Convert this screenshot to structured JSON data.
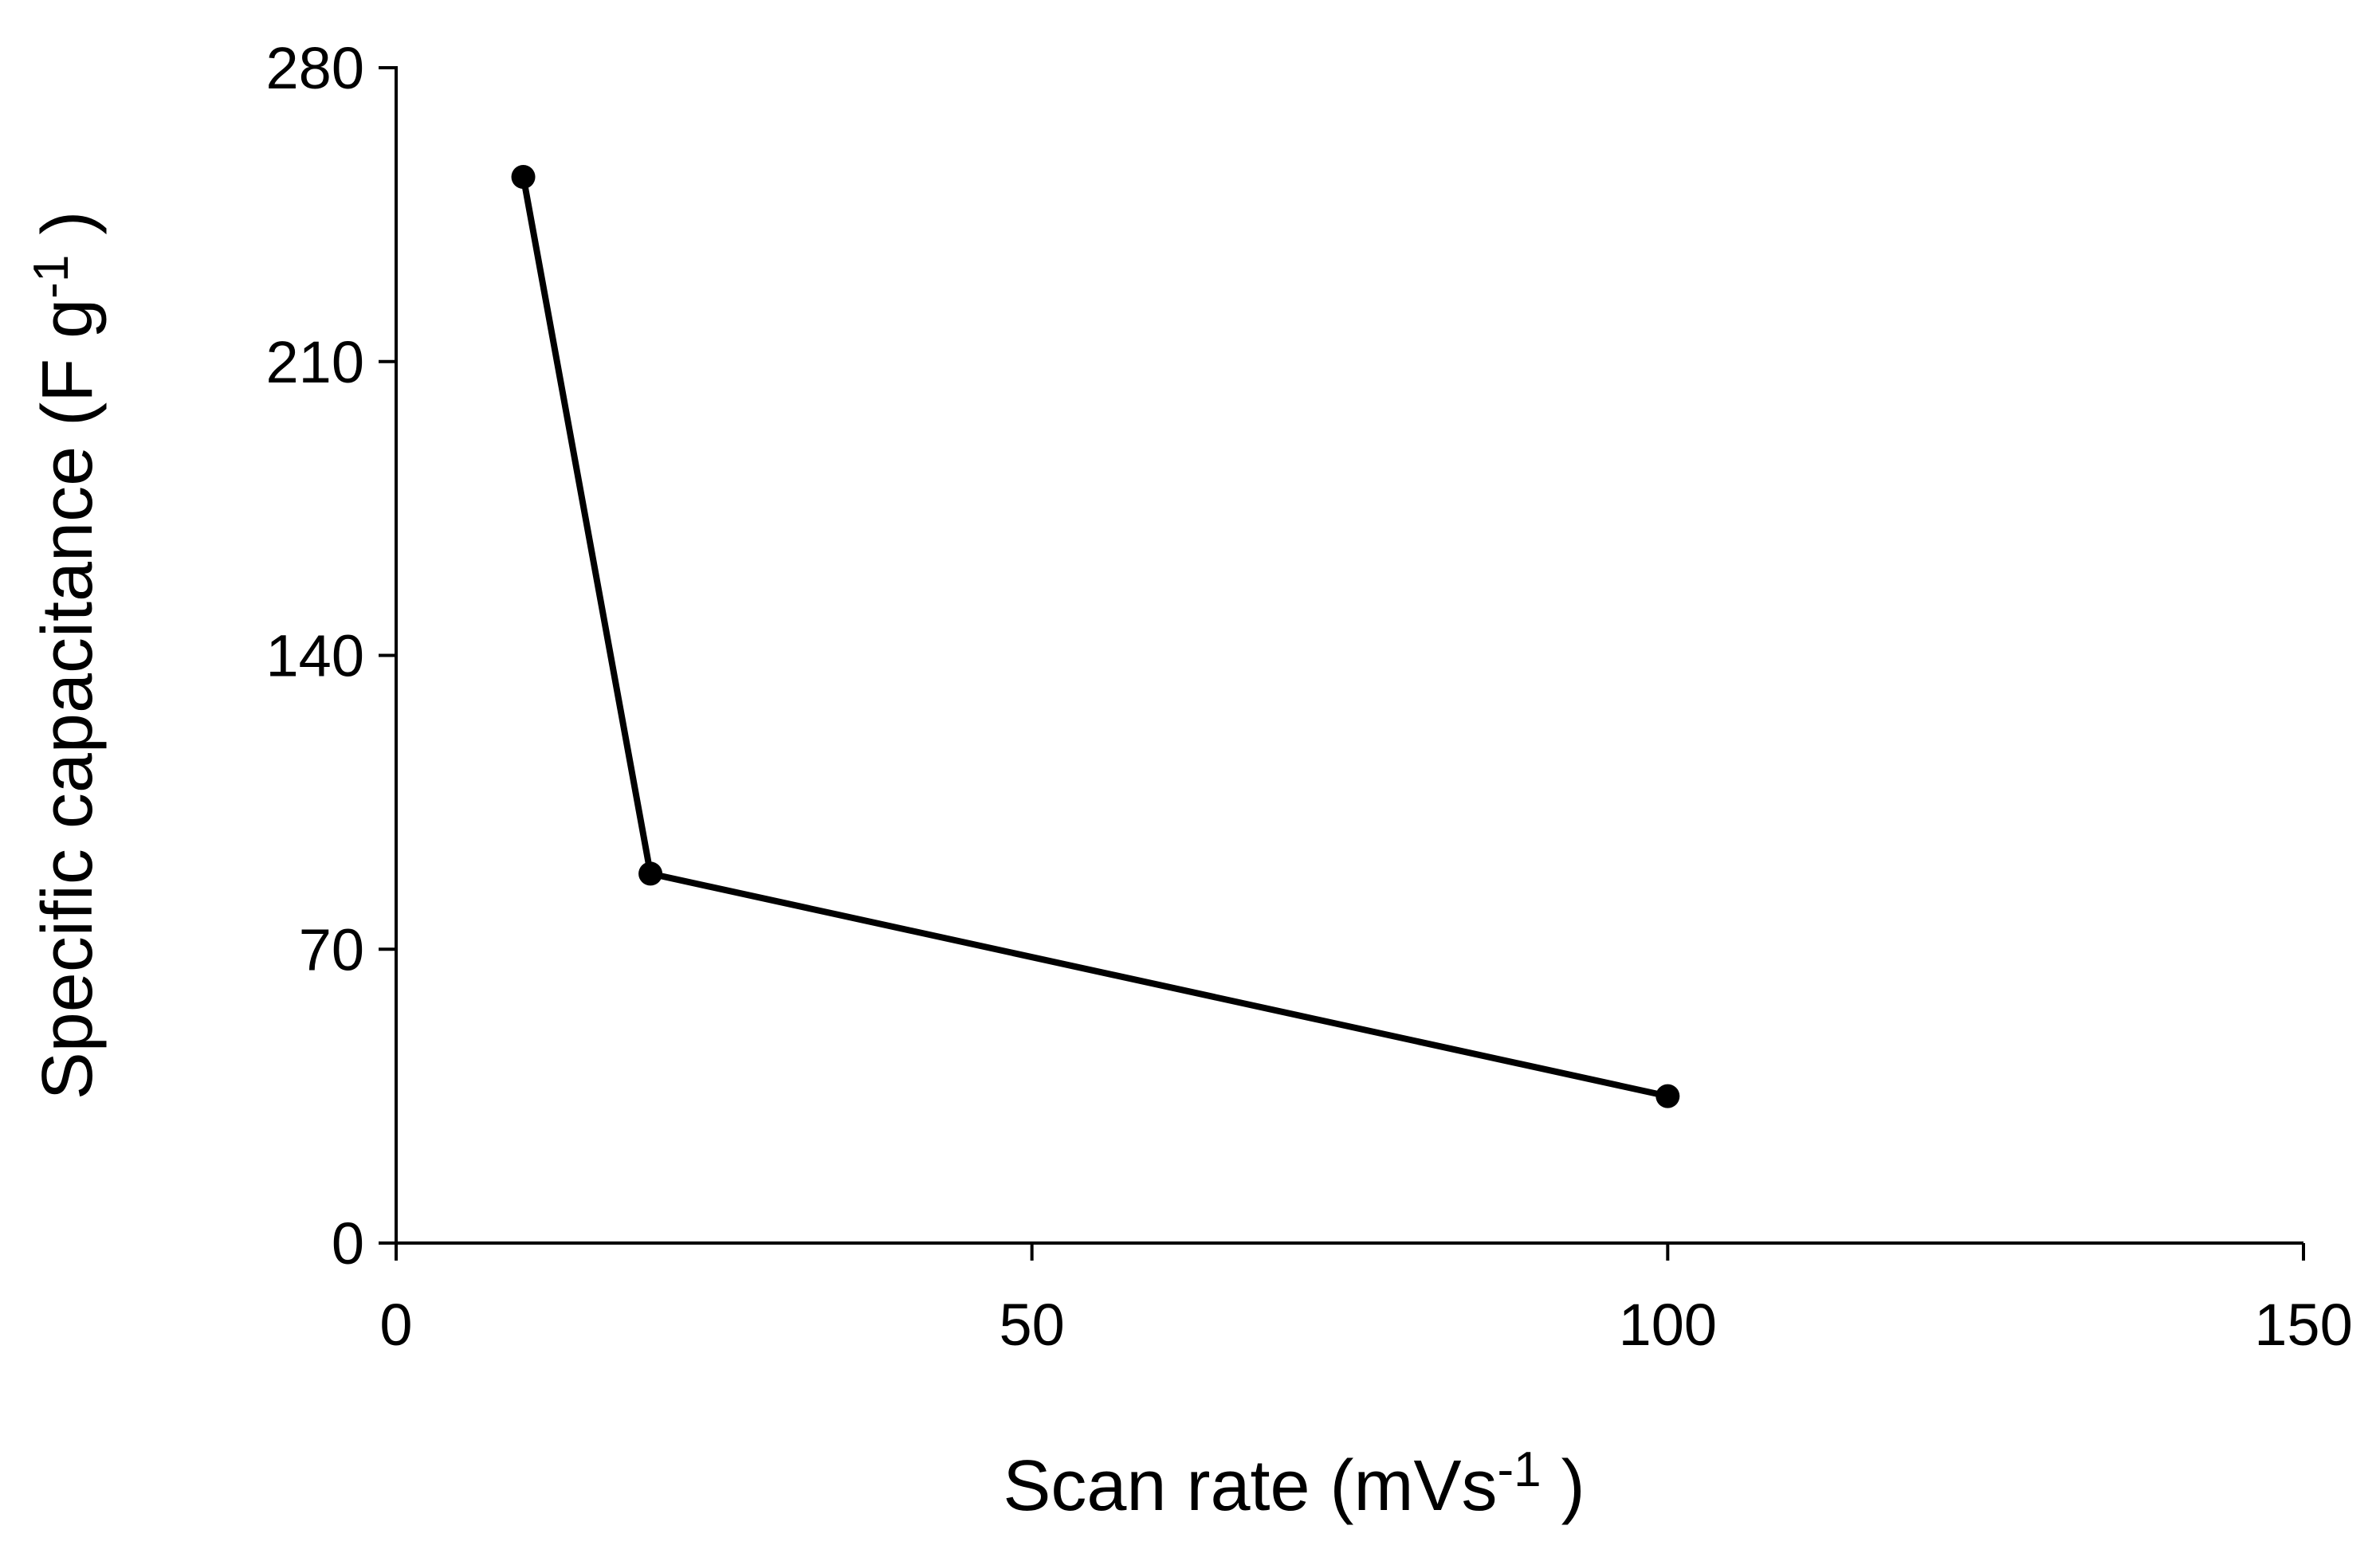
{
  "chart_data": {
    "type": "line",
    "title": "",
    "xlabel": {
      "main": "Scan rate (mVs",
      "sup": "-1",
      "tail": " )"
    },
    "ylabel": {
      "main": "Specific capacitance (F g",
      "sup": "-1",
      "tail": " )"
    },
    "xlim": [
      0,
      150
    ],
    "ylim": [
      0,
      280
    ],
    "xticks": [
      0,
      50,
      100,
      150
    ],
    "yticks": [
      0,
      70,
      140,
      210,
      280
    ],
    "xtick_labels": [
      "0",
      "50",
      "100",
      "150"
    ],
    "ytick_labels": [
      "0",
      "70",
      "140",
      "210",
      "280"
    ],
    "grid": false,
    "legend": "none",
    "series": [
      {
        "color": "#000000",
        "marker": "circle",
        "x": [
          10,
          20,
          100
        ],
        "y": [
          254,
          88,
          35
        ]
      }
    ]
  }
}
